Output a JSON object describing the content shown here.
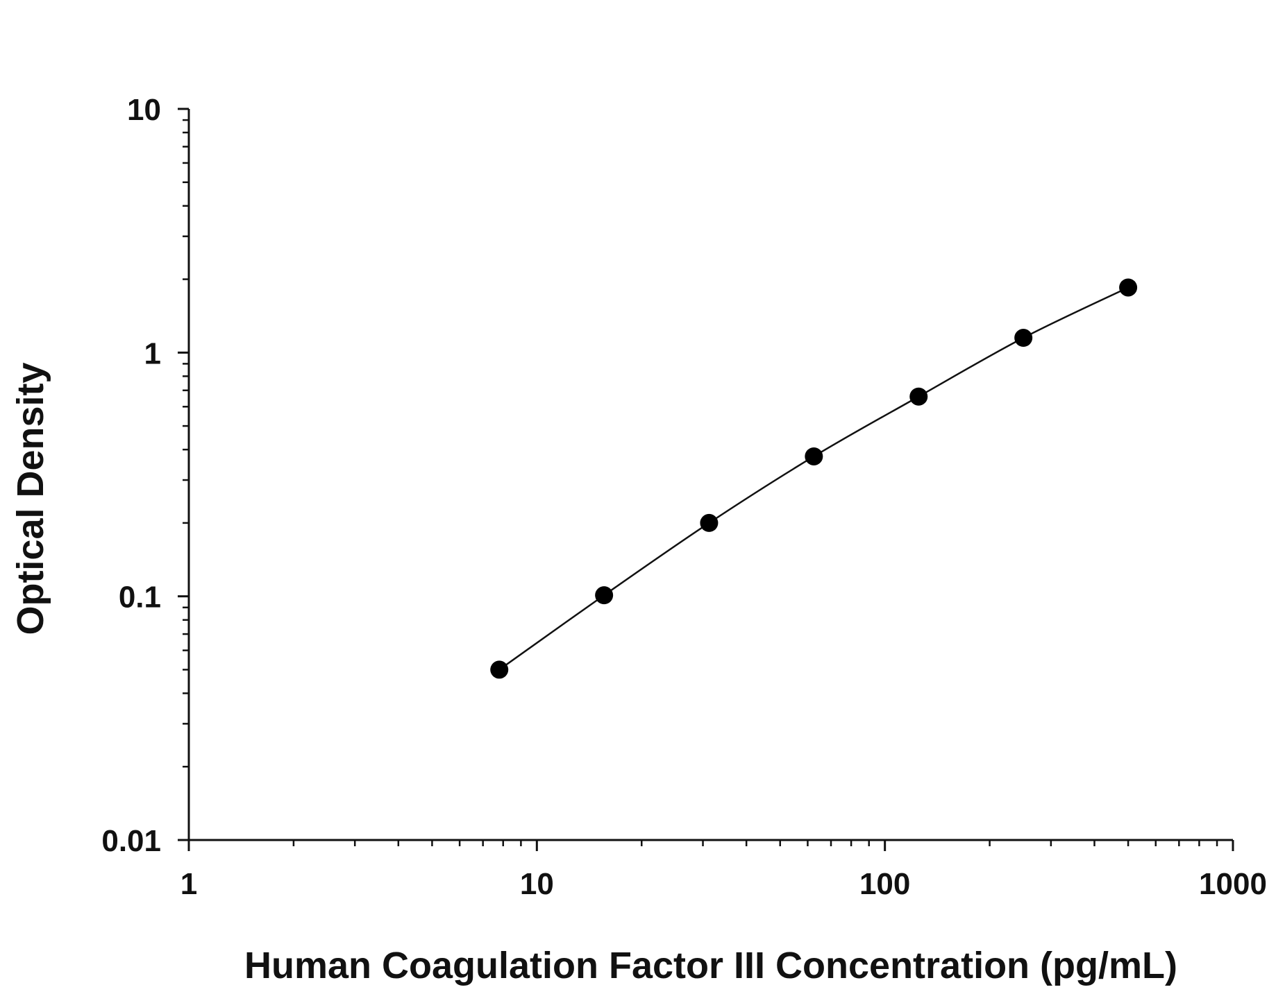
{
  "chart_data": {
    "type": "scatter",
    "xlabel": "Human Coagulation Factor III Concentration (pg/mL)",
    "ylabel": "Optical Density",
    "xscale": "log",
    "yscale": "log",
    "xlim": [
      1,
      1000
    ],
    "ylim": [
      0.01,
      10
    ],
    "x_tick_labels": [
      "1",
      "10",
      "100",
      "1000"
    ],
    "y_tick_labels": [
      "0.01",
      "0.1",
      "1",
      "10"
    ],
    "grid": false,
    "legend": "none",
    "series": [
      {
        "x": [
          7.8,
          15.6,
          31.25,
          62.5,
          125,
          250,
          500
        ],
        "y": [
          0.05,
          0.101,
          0.2,
          0.375,
          0.66,
          1.15,
          1.85
        ]
      }
    ],
    "fit_curve": true,
    "colors": {
      "marker": "#000000",
      "line": "#111111"
    }
  }
}
